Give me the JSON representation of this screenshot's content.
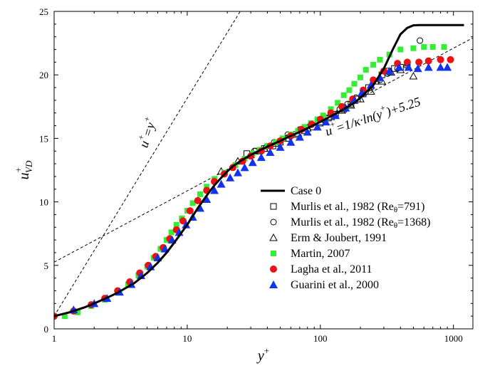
{
  "chart_data": {
    "type": "scatter",
    "title": "",
    "xlabel": {
      "base": "y",
      "sup": "+"
    },
    "ylabel": {
      "base": "u",
      "sup": "+",
      "sub": "VD"
    },
    "xscale": "log",
    "xlim": [
      1,
      1400
    ],
    "ylim": [
      0,
      25
    ],
    "xticks": [
      1,
      10,
      100,
      1000
    ],
    "xtick_labels": [
      "1",
      "10",
      "100",
      "1000"
    ],
    "yticks": [
      0,
      5,
      10,
      15,
      20,
      25
    ],
    "ytick_labels": [
      "0",
      "5",
      "10",
      "15",
      "20",
      "25"
    ],
    "grid": false,
    "legend_position": "lower-right",
    "annotations": [
      {
        "id": "viscous",
        "text_parts": [
          "u",
          "+",
          "=y",
          "+"
        ]
      },
      {
        "id": "log",
        "text_parts": [
          "u",
          "+",
          "=1/κ·ln(y",
          "+",
          ")+5.25"
        ]
      }
    ],
    "reference_lines": [
      {
        "id": "viscous",
        "equation": "u+ = y+",
        "style": "dashed"
      },
      {
        "id": "log",
        "equation": "u+ = 1/0.41 ln(y+) + 5.25",
        "kappa": 0.41,
        "B": 5.25,
        "style": "dashed"
      }
    ],
    "series": [
      {
        "name": "Case 0",
        "marker": "line",
        "color": "#000000",
        "x": [
          1,
          1.3,
          1.7,
          2,
          2.5,
          3,
          4,
          5,
          6,
          7,
          8,
          10,
          12,
          14,
          16,
          18,
          20,
          22,
          25,
          30,
          35,
          40,
          50,
          60,
          70,
          80,
          100,
          120,
          150,
          180,
          200,
          250,
          300,
          350,
          400,
          450,
          500,
          550,
          600,
          800,
          1000,
          1200
        ],
        "y": [
          1.0,
          1.3,
          1.7,
          2.0,
          2.45,
          2.85,
          3.6,
          4.4,
          5.2,
          6.0,
          6.8,
          8.2,
          9.5,
          10.5,
          11.3,
          11.9,
          12.4,
          12.8,
          13.2,
          13.7,
          14.05,
          14.35,
          14.8,
          15.2,
          15.5,
          15.8,
          16.3,
          16.75,
          17.3,
          17.8,
          18.2,
          19.2,
          20.5,
          22.0,
          23.2,
          23.7,
          23.9,
          23.92,
          23.92,
          23.92,
          23.92,
          23.92
        ]
      },
      {
        "name": "Murlis et al., 1982 (Reθ=791)",
        "name_main": "Murlis et al., 1982 (Re",
        "name_sub": "θ",
        "name_end": "=791)",
        "marker": "square-open",
        "color": "#000000",
        "x": [
          28,
          33,
          38,
          44,
          50,
          58,
          66,
          76,
          88,
          100,
          115,
          130,
          150,
          170,
          190,
          210,
          230,
          260,
          290,
          320,
          360,
          400,
          450
        ],
        "y": [
          13.8,
          14.0,
          14.2,
          14.4,
          14.7,
          15.0,
          15.3,
          15.6,
          15.9,
          16.2,
          16.6,
          16.9,
          17.3,
          17.7,
          18.1,
          18.5,
          19.0,
          19.5,
          20.0,
          20.3,
          20.5,
          20.6,
          20.8
        ]
      },
      {
        "name": "Murlis et al., 1982 (Reθ=1368)",
        "name_main": "Murlis et al., 1982 (Re",
        "name_sub": "θ",
        "name_end": "=1368)",
        "marker": "circle-open",
        "color": "#000000",
        "x": [
          32,
          45,
          57,
          70,
          85,
          100,
          120,
          140,
          160,
          185,
          210,
          240,
          280,
          320,
          380,
          450,
          560
        ],
        "y": [
          14.0,
          14.7,
          15.3,
          15.7,
          16.1,
          16.5,
          16.9,
          17.3,
          17.7,
          18.2,
          18.6,
          19.0,
          19.6,
          20.1,
          20.5,
          20.9,
          22.7
        ]
      },
      {
        "name": "Erm & Joubert, 1991",
        "marker": "triangle-open",
        "color": "#000000",
        "x": [
          18,
          24,
          30,
          38,
          46,
          56,
          68,
          80,
          100,
          120,
          145,
          170,
          200,
          240,
          290,
          340,
          400,
          500
        ],
        "y": [
          12.4,
          13.2,
          13.7,
          14.2,
          14.6,
          15.0,
          15.4,
          15.8,
          16.3,
          16.7,
          17.2,
          17.6,
          18.1,
          18.7,
          19.5,
          20.2,
          20.4,
          19.9
        ]
      },
      {
        "name": "Martin, 2007",
        "marker": "square-filled",
        "color": "#33ee33",
        "x": [
          1.2,
          1.5,
          1.9,
          2.4,
          3.0,
          3.6,
          4.3,
          5.0,
          5.6,
          6.3,
          7.0,
          7.6,
          8.3,
          9.1,
          10,
          11,
          12.5,
          14,
          16,
          19,
          23,
          27,
          31,
          35,
          40,
          46,
          52,
          60,
          68,
          76,
          85,
          95,
          105,
          120,
          135,
          150,
          165,
          180,
          200,
          220,
          250,
          280,
          330,
          400,
          500,
          600,
          700,
          850
        ],
        "y": [
          1.0,
          1.3,
          1.8,
          2.3,
          2.9,
          3.5,
          4.2,
          4.9,
          5.6,
          6.3,
          7.0,
          7.6,
          8.2,
          8.7,
          9.3,
          9.9,
          10.6,
          11.2,
          11.8,
          12.3,
          12.9,
          13.4,
          13.8,
          14.1,
          14.4,
          14.7,
          15.0,
          15.3,
          15.6,
          15.9,
          16.2,
          16.5,
          16.8,
          17.3,
          17.8,
          18.4,
          18.8,
          19.3,
          19.8,
          20.4,
          20.8,
          21.2,
          21.6,
          22.0,
          22.1,
          22.2,
          22.2,
          22.2
        ]
      },
      {
        "name": "Lagha et al., 2011",
        "marker": "circle-filled",
        "color": "#ee1111",
        "x": [
          1.0,
          1.4,
          1.9,
          2.4,
          3.0,
          3.7,
          4.4,
          5.1,
          5.8,
          6.6,
          7.4,
          8.3,
          9.3,
          10.5,
          12,
          14,
          16,
          19,
          22,
          26,
          30,
          36,
          42,
          50,
          60,
          72,
          86,
          100,
          120,
          145,
          175,
          210,
          250,
          300,
          380,
          450,
          550,
          650,
          800,
          950
        ],
        "y": [
          1.0,
          1.4,
          1.9,
          2.4,
          3.0,
          3.7,
          4.4,
          5.0,
          5.7,
          6.4,
          7.1,
          7.8,
          8.5,
          9.3,
          10.1,
          10.9,
          11.6,
          12.2,
          12.7,
          13.2,
          13.6,
          14.0,
          14.4,
          14.8,
          15.2,
          15.7,
          16.1,
          16.5,
          17.0,
          17.5,
          18.1,
          18.8,
          19.6,
          20.3,
          20.9,
          21.0,
          21.0,
          21.1,
          21.2,
          21.2
        ]
      },
      {
        "name": "Guarini et al., 2000",
        "marker": "triangle-filled",
        "color": "#1133ee",
        "x": [
          1.4,
          2.0,
          2.5,
          3.1,
          3.8,
          4.5,
          5.3,
          6.0,
          6.8,
          7.7,
          8.7,
          9.8,
          11,
          12.5,
          14,
          16,
          18,
          21,
          24,
          27,
          31,
          36,
          42,
          50,
          60,
          70,
          80,
          95,
          110,
          130,
          155,
          180,
          205,
          240,
          280,
          330,
          390,
          460,
          540,
          650,
          800,
          900
        ],
        "y": [
          1.5,
          2.0,
          2.4,
          2.9,
          3.5,
          4.2,
          4.9,
          5.6,
          6.3,
          7.0,
          7.6,
          8.2,
          8.8,
          9.5,
          10.2,
          10.9,
          11.4,
          11.9,
          12.3,
          12.7,
          13.1,
          13.5,
          13.9,
          14.3,
          14.7,
          15.1,
          15.5,
          15.9,
          16.3,
          16.8,
          17.4,
          18.0,
          18.6,
          19.2,
          19.8,
          20.3,
          20.6,
          20.6,
          20.5,
          20.6,
          20.6,
          20.6
        ]
      }
    ]
  }
}
